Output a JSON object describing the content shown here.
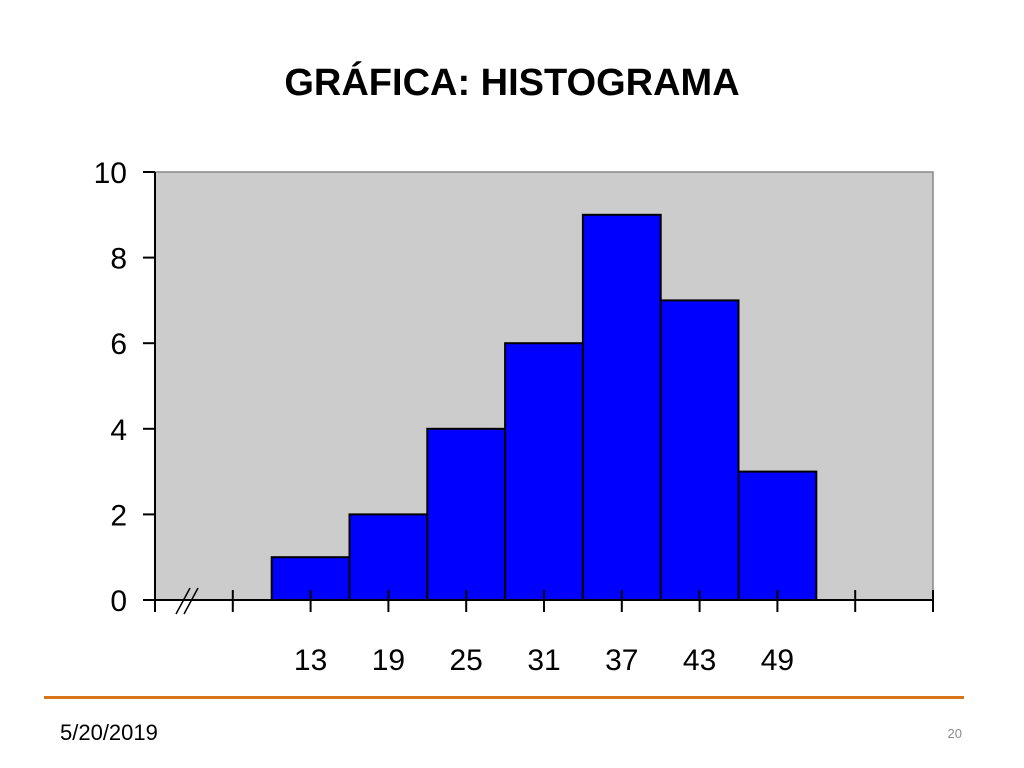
{
  "slide": {
    "title": "GRÁFICA: HISTOGRAMA",
    "date": "5/20/2019",
    "page_number": "20"
  },
  "colors": {
    "bar_fill": "#0000ff",
    "plot_background": "#cccccc",
    "accent_rule": "#d9741c"
  },
  "chart_data": {
    "type": "bar",
    "title": "",
    "xlabel": "",
    "ylabel": "",
    "categories": [
      "13",
      "19",
      "25",
      "31",
      "37",
      "43",
      "49"
    ],
    "values": [
      1,
      2,
      4,
      6,
      9,
      7,
      3
    ],
    "ylim": [
      0,
      10
    ],
    "yticks": [
      0,
      2,
      4,
      6,
      8,
      10
    ],
    "x_axis_break": true,
    "grid": false,
    "legend": "none"
  }
}
